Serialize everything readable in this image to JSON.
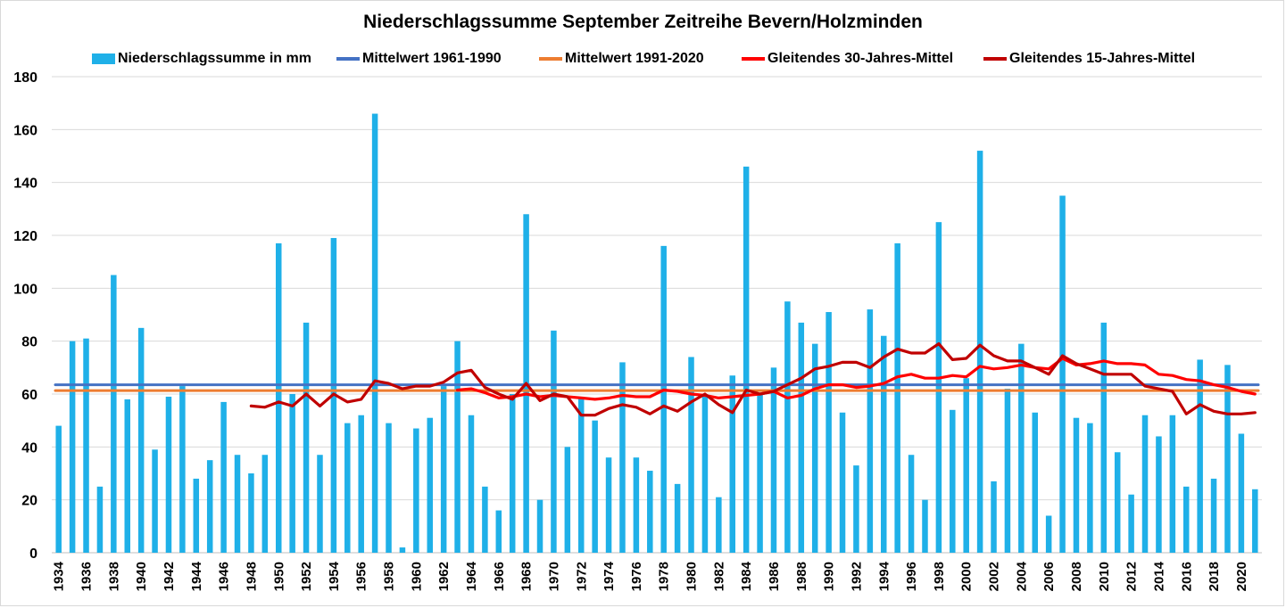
{
  "chart_data": {
    "type": "bar",
    "title": "Niederschlagssumme September Zeitreihe Bevern/Holzminden",
    "xlabel": "",
    "ylabel": "",
    "ylim": [
      0,
      180
    ],
    "yticks": [
      0,
      20,
      40,
      60,
      80,
      100,
      120,
      140,
      160,
      180
    ],
    "x_tick_labels": [
      1934,
      1936,
      1938,
      1940,
      1942,
      1944,
      1946,
      1948,
      1950,
      1952,
      1954,
      1956,
      1958,
      1960,
      1962,
      1964,
      1966,
      1968,
      1970,
      1972,
      1974,
      1976,
      1978,
      1980,
      1982,
      1984,
      1986,
      1988,
      1990,
      1992,
      1994,
      1996,
      1998,
      2000,
      2002,
      2004,
      2006,
      2008,
      2010,
      2012,
      2014,
      2016,
      2018,
      2020
    ],
    "grid": true,
    "legend_position": "top",
    "categories": [
      1934,
      1935,
      1936,
      1937,
      1938,
      1939,
      1940,
      1941,
      1942,
      1943,
      1944,
      1945,
      1946,
      1947,
      1948,
      1949,
      1950,
      1951,
      1952,
      1953,
      1954,
      1955,
      1956,
      1957,
      1958,
      1959,
      1960,
      1961,
      1962,
      1963,
      1964,
      1965,
      1966,
      1967,
      1968,
      1969,
      1970,
      1971,
      1972,
      1973,
      1974,
      1975,
      1976,
      1977,
      1978,
      1979,
      1980,
      1981,
      1982,
      1983,
      1984,
      1985,
      1986,
      1987,
      1988,
      1989,
      1990,
      1991,
      1992,
      1993,
      1994,
      1995,
      1996,
      1997,
      1998,
      1999,
      2000,
      2001,
      2002,
      2003,
      2004,
      2005,
      2006,
      2007,
      2008,
      2009,
      2010,
      2011,
      2012,
      2013,
      2014,
      2015,
      2016,
      2017,
      2018,
      2019,
      2020,
      2021
    ],
    "series": [
      {
        "name": "Niederschlagssumme in mm",
        "type": "bar",
        "color": "#1fb0e8",
        "values": [
          48,
          80,
          81,
          25,
          105,
          58,
          85,
          39,
          59,
          63,
          28,
          35,
          57,
          37,
          30,
          37,
          117,
          60,
          87,
          37,
          119,
          49,
          52,
          166,
          49,
          2,
          47,
          51,
          63,
          80,
          52,
          25,
          16,
          60,
          128,
          20,
          84,
          40,
          59,
          50,
          36,
          72,
          36,
          31,
          116,
          26,
          74,
          60,
          21,
          67,
          146,
          60,
          70,
          95,
          87,
          79,
          91,
          53,
          33,
          92,
          82,
          117,
          37,
          20,
          125,
          54,
          66,
          152,
          27,
          62,
          79,
          53,
          14,
          135,
          51,
          49,
          87,
          38,
          22,
          52,
          44,
          52,
          25,
          73,
          28,
          71,
          45,
          24
        ]
      },
      {
        "name": "Mittelwert 1961-1990",
        "type": "line",
        "color": "#4472c4",
        "x": [
          1934,
          2021
        ],
        "values": [
          63.5,
          63.5
        ]
      },
      {
        "name": "Mittelwert 1991-2020",
        "type": "line",
        "color": "#ed7d31",
        "x": [
          1934,
          2021
        ],
        "values": [
          61.3,
          61.3
        ]
      },
      {
        "name": "Gleitendes 30-Jahres-Mittel",
        "type": "line",
        "color": "#ff0000",
        "x": [
          1963,
          1964,
          1965,
          1966,
          1967,
          1968,
          1969,
          1970,
          1971,
          1972,
          1973,
          1974,
          1975,
          1976,
          1977,
          1978,
          1979,
          1980,
          1981,
          1982,
          1983,
          1984,
          1985,
          1986,
          1987,
          1988,
          1989,
          1990,
          1991,
          1992,
          1993,
          1994,
          1995,
          1996,
          1997,
          1998,
          1999,
          2000,
          2001,
          2002,
          2003,
          2004,
          2005,
          2006,
          2007,
          2008,
          2009,
          2010,
          2011,
          2012,
          2013,
          2014,
          2015,
          2016,
          2017,
          2018,
          2019,
          2020,
          2021
        ],
        "values": [
          61.5,
          62,
          60.5,
          58.5,
          59,
          60,
          59,
          59.5,
          59,
          58.5,
          58,
          58.5,
          59.5,
          59,
          59,
          61.5,
          61,
          60,
          59.5,
          58.5,
          59,
          59.5,
          60,
          61,
          58.5,
          59.5,
          62,
          63.5,
          63.5,
          62.5,
          63,
          64,
          66.5,
          67.5,
          66,
          66,
          67,
          66.5,
          70.5,
          69.5,
          70,
          71,
          70,
          69.5,
          73.5,
          71,
          71.5,
          72.5,
          71.5,
          71.5,
          71,
          67.5,
          67,
          65.5,
          65,
          63.5,
          62.5,
          61,
          60
        ]
      },
      {
        "name": "Gleitendes 15-Jahres-Mittel",
        "type": "line",
        "color": "#c00000",
        "x": [
          1948,
          1949,
          1950,
          1951,
          1952,
          1953,
          1954,
          1955,
          1956,
          1957,
          1958,
          1959,
          1960,
          1961,
          1962,
          1963,
          1964,
          1965,
          1966,
          1967,
          1968,
          1969,
          1970,
          1971,
          1972,
          1973,
          1974,
          1975,
          1976,
          1977,
          1978,
          1979,
          1980,
          1981,
          1982,
          1983,
          1984,
          1985,
          1986,
          1987,
          1988,
          1989,
          1990,
          1991,
          1992,
          1993,
          1994,
          1995,
          1996,
          1997,
          1998,
          1999,
          2000,
          2001,
          2002,
          2003,
          2004,
          2005,
          2006,
          2007,
          2008,
          2009,
          2010,
          2011,
          2012,
          2013,
          2014,
          2015,
          2016,
          2017,
          2018,
          2019,
          2020,
          2021
        ],
        "values": [
          55.5,
          55,
          57,
          55.5,
          60,
          55.5,
          60,
          57,
          58,
          65,
          64,
          62,
          63,
          63,
          64.5,
          68,
          69,
          62.5,
          60,
          58,
          64,
          57.5,
          60,
          59,
          52,
          52,
          54.5,
          56,
          55,
          52.5,
          55.5,
          53.5,
          57,
          60,
          56,
          53,
          61.5,
          60,
          61,
          63.5,
          66,
          69.5,
          70.5,
          72,
          72,
          70,
          74,
          77,
          75.5,
          75.5,
          79,
          73,
          73.5,
          78.5,
          74.5,
          72.5,
          72.5,
          70,
          67.5,
          74.5,
          71.5,
          69.5,
          67.5,
          67.5,
          67.5,
          63,
          62,
          61,
          52.5,
          56,
          53.5,
          52.5,
          52.5,
          53
        ]
      }
    ]
  }
}
